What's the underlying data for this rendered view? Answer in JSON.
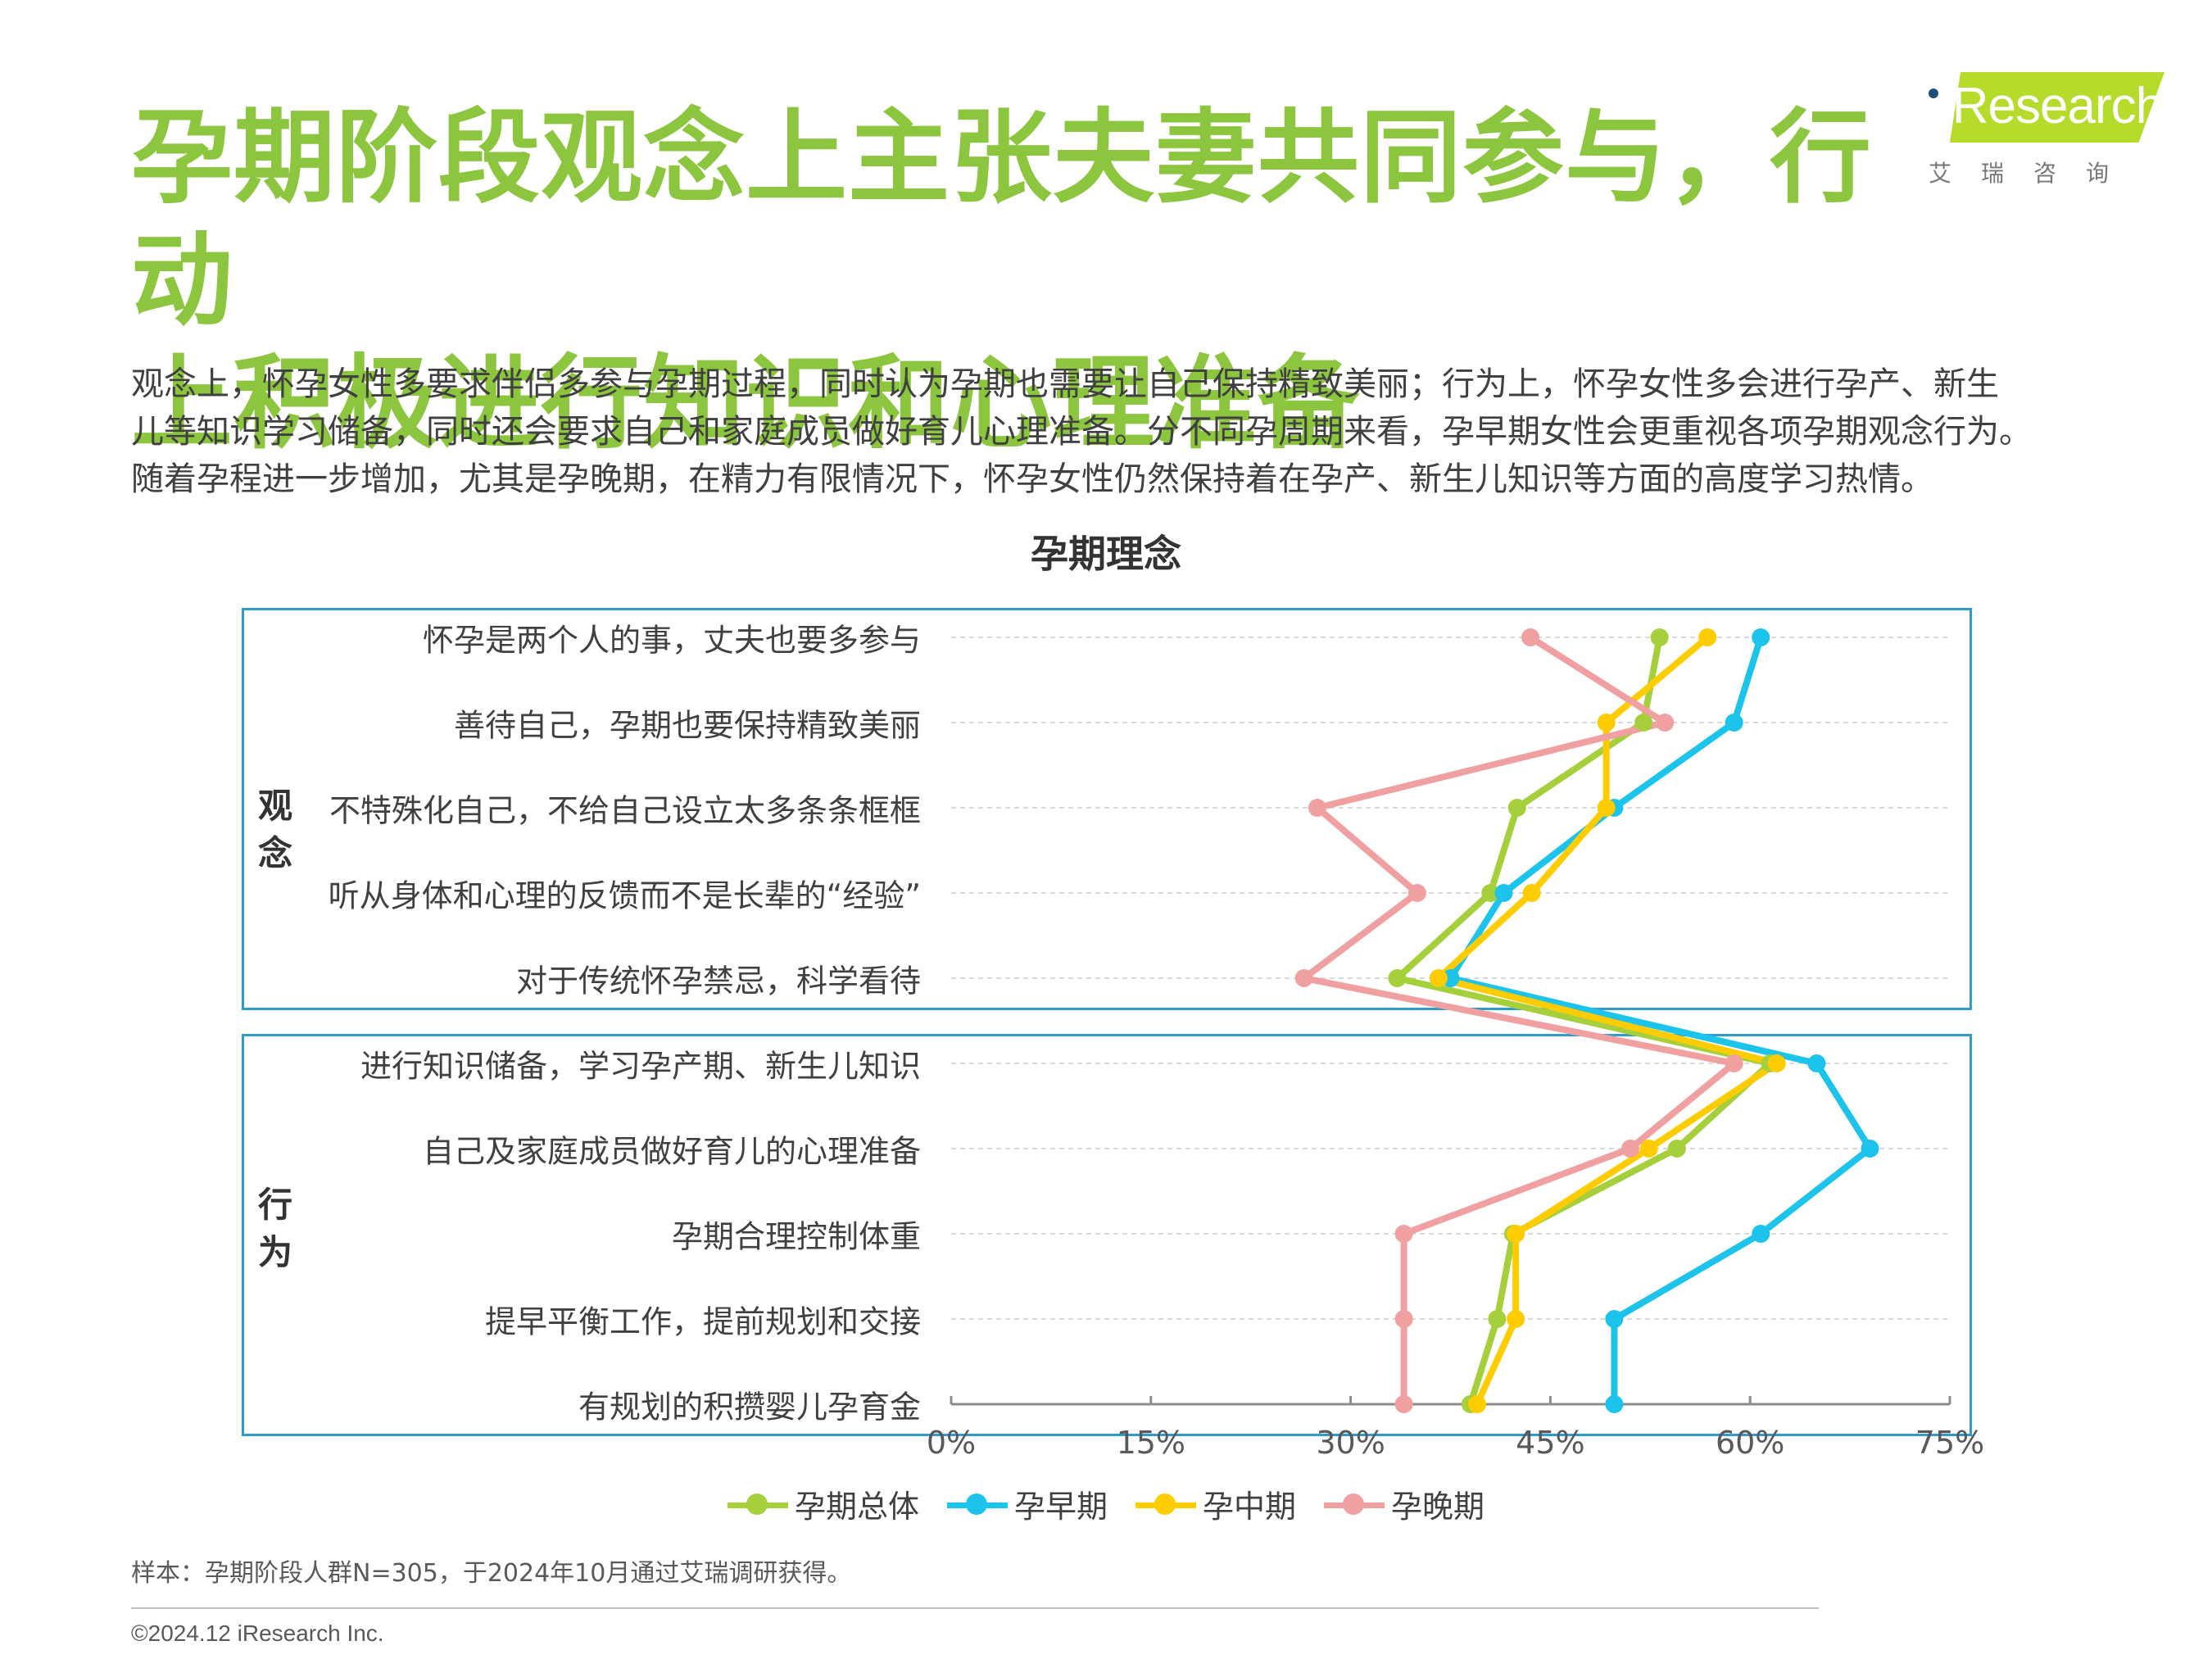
{
  "header": {
    "title_line1": "孕期阶段观念上主张夫妻共同参与，行动",
    "title_line2": "上积极进行知识和心理准备",
    "logo_text": "iResearch",
    "logo_sub": "艾瑞咨询"
  },
  "description": [
    "观念上，怀孕女性多要求伴侣多参与孕期过程，同时认为孕期也需要让自己保持精致美丽；行为上，怀孕女性多会进行孕产、新生",
    "儿等知识学习储备，同时还会要求自己和家庭成员做好育儿心理准备。分不同孕周期来看，孕早期女性会更重视各项孕期观念行为。",
    "随着孕程进一步增加，尤其是孕晚期，在精力有限情况下，怀孕女性仍然保持着在孕产、新生儿知识等方面的高度学习热情。"
  ],
  "chart_data": {
    "type": "line",
    "title": "孕期理念",
    "orientation": "horizontal",
    "groups": [
      {
        "label": "观念",
        "category_indices": [
          0,
          1,
          2,
          3,
          4
        ]
      },
      {
        "label": "行为",
        "category_indices": [
          5,
          6,
          7,
          8,
          9
        ]
      }
    ],
    "categories": [
      "怀孕是两个人的事，丈夫也要多参与",
      "善待自己，孕期也要保持精致美丽",
      "不特殊化自己，不给自己设立太多条条框框",
      "听从身体和心理的反馈而不是长辈的“经验”",
      "对于传统怀孕禁忌，科学看待",
      "进行知识储备，学习孕产期、新生儿知识",
      "自己及家庭成员做好育儿的心理准备",
      "孕期合理控制体重",
      "提早平衡工作，提前规划和交接",
      "有规划的积攒婴儿孕育金"
    ],
    "xlim": [
      0,
      75
    ],
    "xticks": [
      "0%",
      "15%",
      "30%",
      "45%",
      "60%",
      "75%"
    ],
    "xtick_values": [
      0,
      15,
      30,
      45,
      60,
      75
    ],
    "grid": true,
    "legend_position": "bottom",
    "series": [
      {
        "name": "孕期总体",
        "color": "#a6cf3c",
        "values": [
          53.2,
          52.0,
          42.5,
          40.5,
          33.5,
          61.5,
          54.5,
          42.2,
          41.0,
          39.0
        ]
      },
      {
        "name": "孕早期",
        "color": "#1cc4ec",
        "values": [
          60.8,
          58.8,
          49.8,
          41.5,
          37.5,
          65.0,
          69.0,
          60.8,
          49.8,
          49.8
        ]
      },
      {
        "name": "孕中期",
        "color": "#ffcc00",
        "values": [
          56.8,
          49.2,
          49.2,
          43.6,
          36.6,
          62.0,
          52.4,
          42.4,
          42.4,
          39.5
        ]
      },
      {
        "name": "孕晚期",
        "color": "#f0a0a0",
        "values": [
          43.5,
          53.6,
          27.5,
          35.0,
          26.5,
          58.8,
          51.0,
          34.0,
          34.0,
          34.0
        ]
      }
    ]
  },
  "footer": {
    "note": "样本：孕期阶段人群N=305，于2024年10月通过艾瑞调研获得。",
    "copyright": "©2024.12 iResearch Inc."
  }
}
